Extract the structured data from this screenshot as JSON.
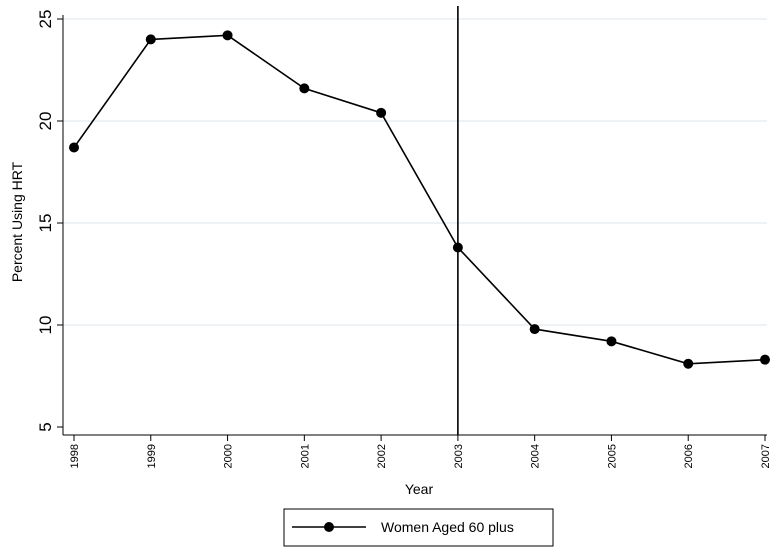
{
  "chart_data": {
    "type": "line",
    "x": [
      1998,
      1999,
      2000,
      2001,
      2002,
      2003,
      2004,
      2005,
      2006,
      2007
    ],
    "x_tick_labels": [
      "1998",
      "1999",
      "2000",
      "2001",
      "2002",
      "2003",
      "2004",
      "2005",
      "2006",
      "2007"
    ],
    "series": [
      {
        "name": "Women Aged 60 plus",
        "values": [
          18.7,
          24.0,
          24.2,
          21.6,
          20.4,
          13.8,
          9.8,
          9.2,
          8.1,
          8.3
        ],
        "color": "#000000",
        "marker": "filled-circle"
      }
    ],
    "xlabel": "Year",
    "ylabel": "Percent Using HRT",
    "ylim": [
      5,
      25
    ],
    "y_ticks": [
      5,
      10,
      15,
      20,
      25
    ],
    "y_tick_labels": [
      "5",
      "10",
      "15",
      "20",
      "25"
    ],
    "vertical_reference_line_x": 2003,
    "grid": "horizontal",
    "grid_color": "#e8eef2",
    "legend_placement": "bottom-center"
  }
}
